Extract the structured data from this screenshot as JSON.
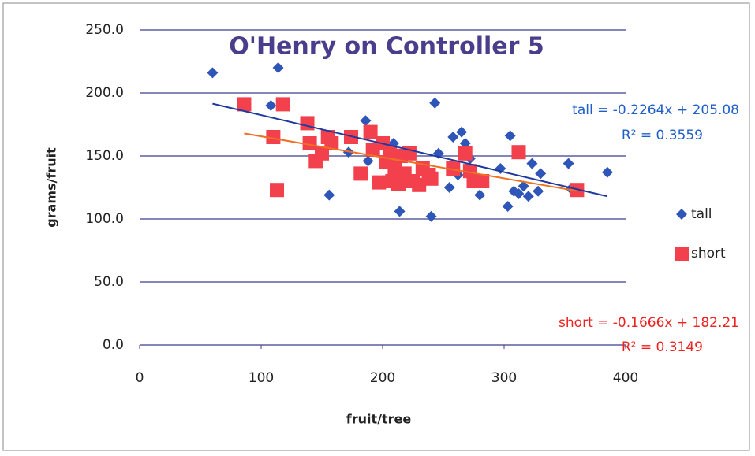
{
  "chart_data": {
    "type": "scatter",
    "title": "O'Henry on Controller 5",
    "x_label": "fruit/tree",
    "y_label": "grams/fruit",
    "xlim": [
      0,
      400
    ],
    "ylim": [
      0,
      250
    ],
    "xticks": [
      0,
      100,
      200,
      300,
      400
    ],
    "yticks": [
      {
        "value": 0,
        "label": "0.0"
      },
      {
        "value": 50,
        "label": "50.0"
      },
      {
        "value": 100,
        "label": "100.0"
      },
      {
        "value": 150,
        "label": "150.0"
      },
      {
        "value": 200,
        "label": "200.0"
      },
      {
        "value": 250,
        "label": "250.0"
      }
    ],
    "grid": true,
    "legend": "right",
    "series": [
      {
        "name": "tall",
        "color": "#2e55b8",
        "marker": "diamond",
        "x": [
          60,
          114,
          108,
          156,
          172,
          186,
          188,
          209,
          214,
          240,
          243,
          246,
          255,
          258,
          262,
          265,
          268,
          272,
          280,
          297,
          303,
          305,
          308,
          312,
          316,
          320,
          323,
          328,
          330,
          353,
          355,
          385
        ],
        "values": [
          216,
          220,
          190,
          119,
          153,
          178,
          146,
          160,
          106,
          102,
          192,
          152,
          125,
          165,
          135,
          169,
          160,
          148,
          119,
          140,
          110,
          166,
          122,
          120,
          126,
          118,
          144,
          122,
          136,
          144,
          124,
          137
        ],
        "trend": {
          "slope": -0.2264,
          "intercept": 205.08,
          "color": "#1f3a9e",
          "label": "tall = -0.2264x + 205.08",
          "r2_label": "R² = 0.3559",
          "label_color": "#1f5fc8"
        }
      },
      {
        "name": "short",
        "color": "#f2404c",
        "marker": "square",
        "x": [
          86,
          110,
          113,
          118,
          138,
          140,
          145,
          150,
          155,
          158,
          174,
          182,
          190,
          192,
          197,
          200,
          203,
          206,
          208,
          210,
          213,
          215,
          218,
          222,
          225,
          230,
          233,
          238,
          240,
          258,
          268,
          272,
          275,
          282,
          312,
          360
        ],
        "values": [
          191,
          165,
          123,
          191,
          176,
          160,
          146,
          152,
          165,
          160,
          165,
          136,
          169,
          155,
          129,
          160,
          145,
          152,
          130,
          140,
          128,
          150,
          136,
          152,
          130,
          127,
          140,
          135,
          132,
          140,
          152,
          138,
          130,
          130,
          153,
          123
        ],
        "trend": {
          "slope": -0.1666,
          "intercept": 182.21,
          "color": "#f07020",
          "label": "short = -0.1666x + 182.21",
          "r2_label": "R² = 0.3149",
          "label_color": "#ee2020"
        }
      }
    ]
  }
}
